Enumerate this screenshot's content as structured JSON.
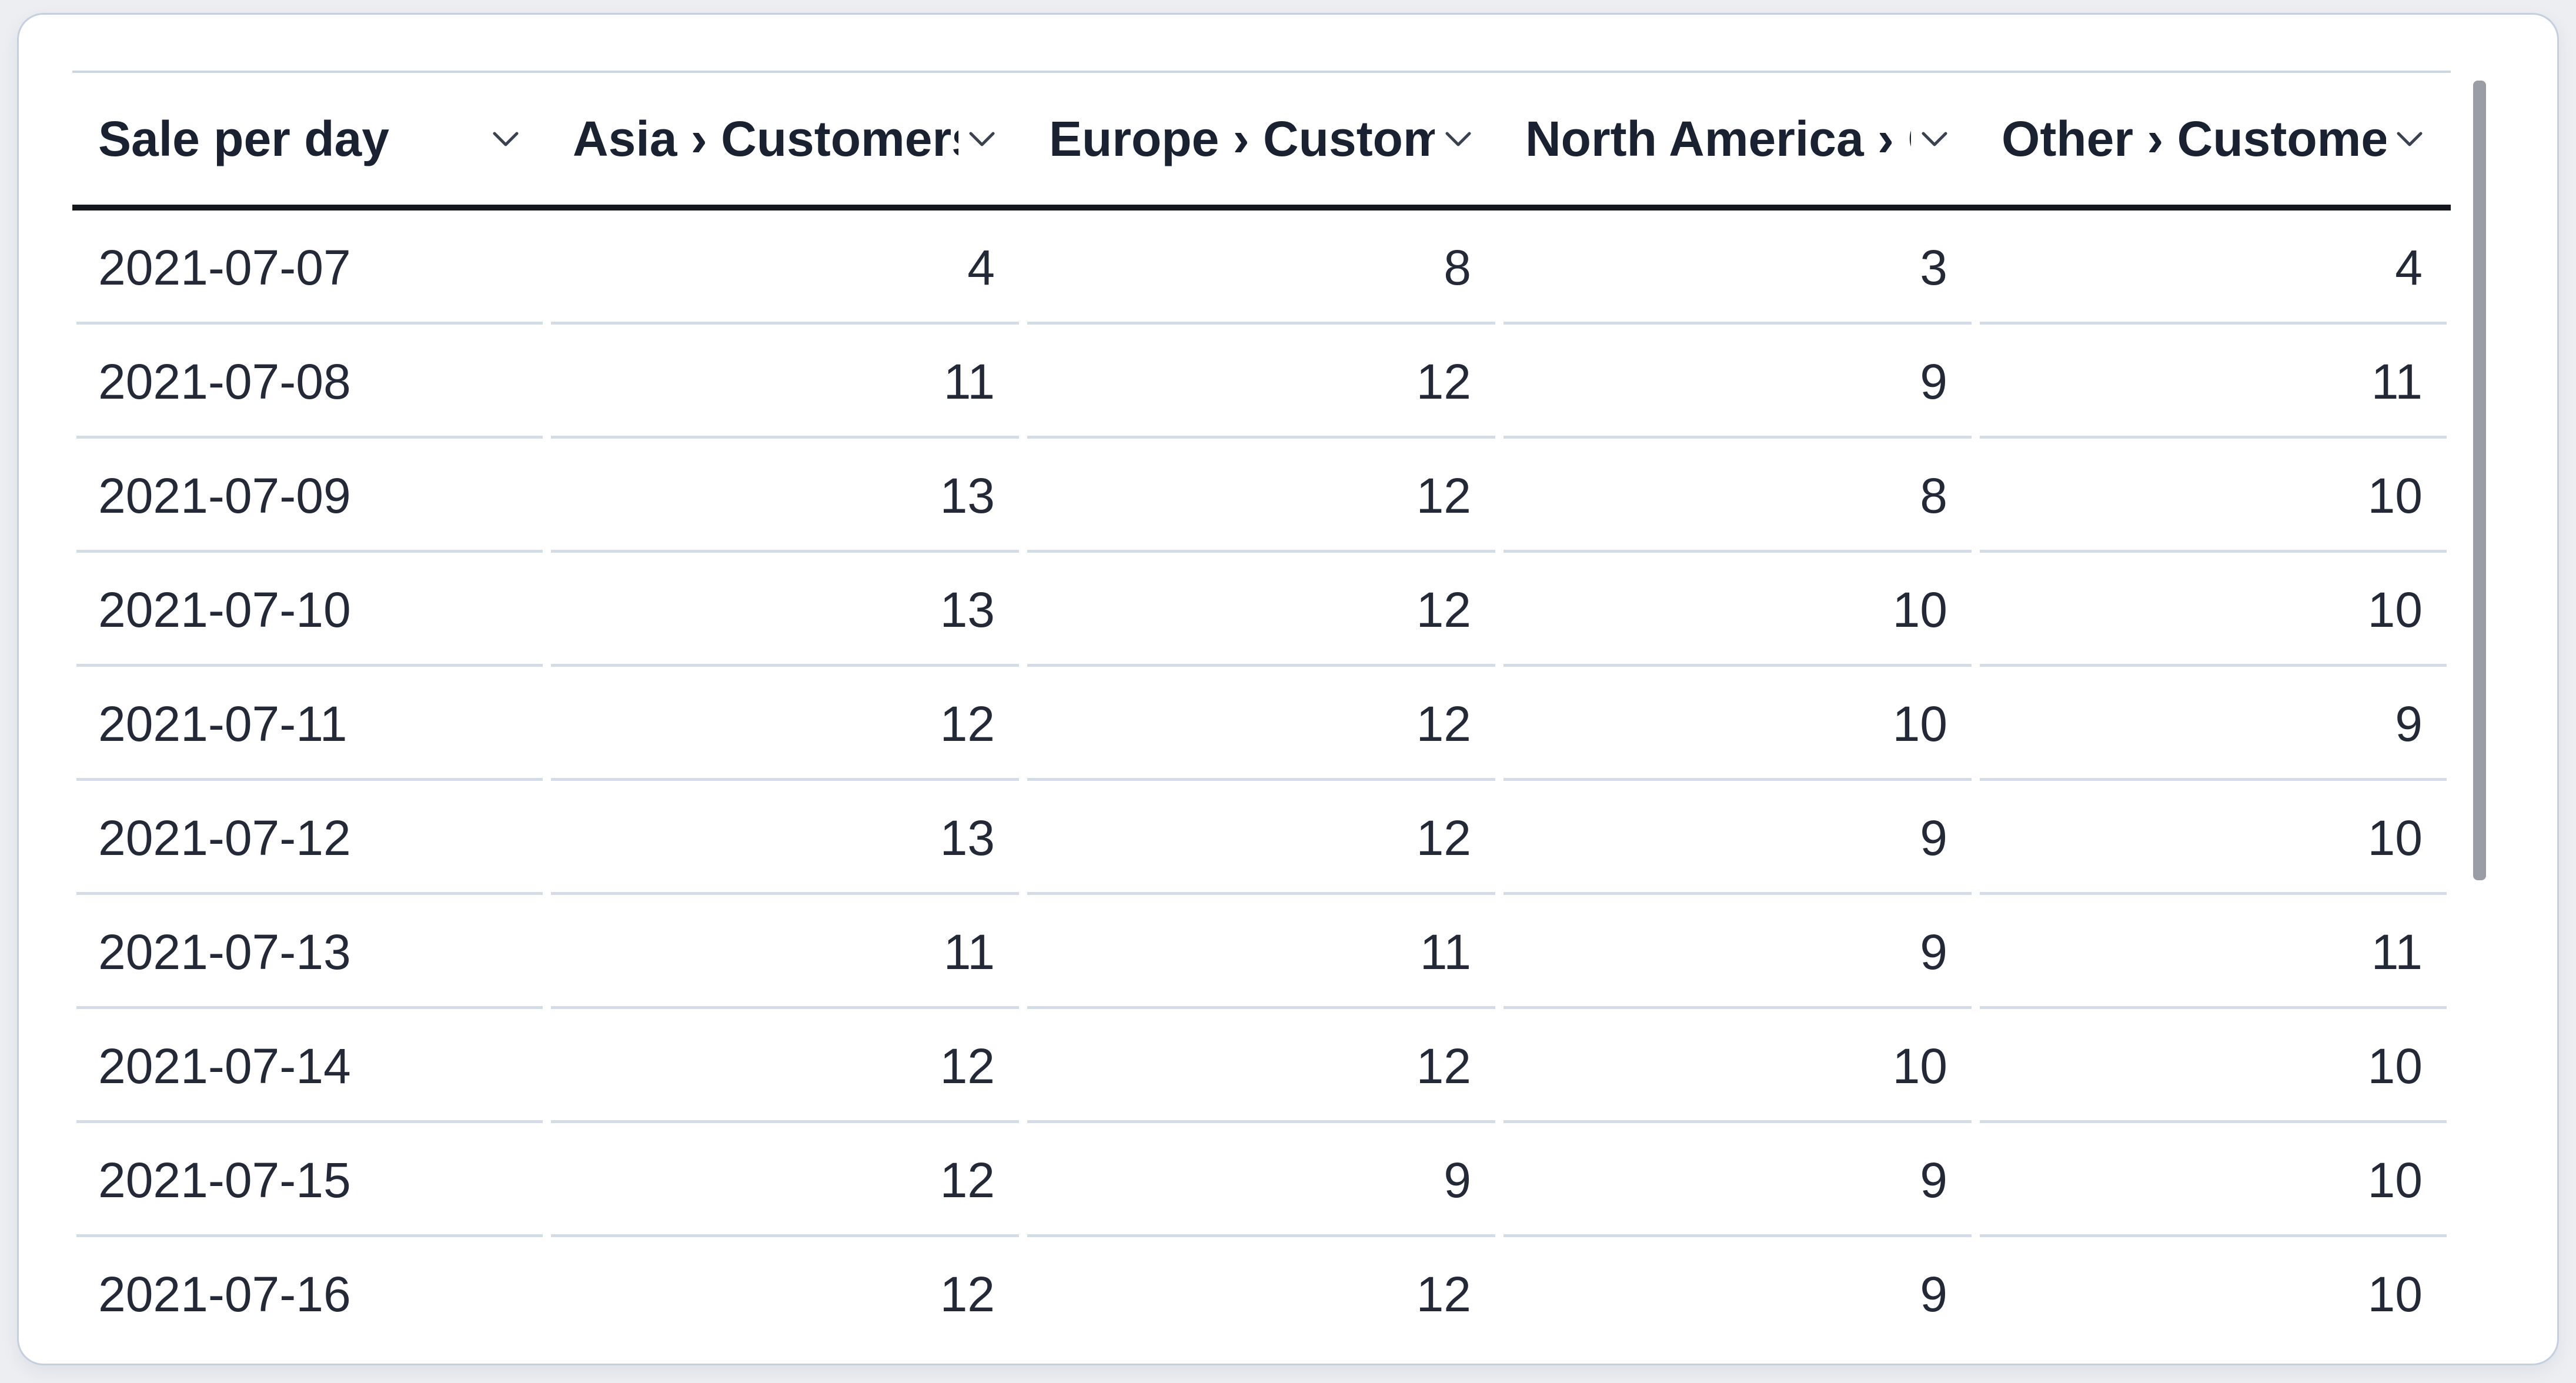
{
  "table": {
    "title": "Sale per day",
    "columns": [
      {
        "label": "Sale per day",
        "align": "left"
      },
      {
        "label": "Asia › Customers",
        "align": "right"
      },
      {
        "label": "Europe › Customers",
        "align": "right"
      },
      {
        "label": "North America › Customers",
        "align": "right"
      },
      {
        "label": "Other › Customers",
        "align": "right"
      }
    ],
    "rows": [
      {
        "date": "2021-07-07",
        "values": [
          4,
          8,
          3,
          4
        ]
      },
      {
        "date": "2021-07-08",
        "values": [
          11,
          12,
          9,
          11
        ]
      },
      {
        "date": "2021-07-09",
        "values": [
          13,
          12,
          8,
          10
        ]
      },
      {
        "date": "2021-07-10",
        "values": [
          13,
          12,
          10,
          10
        ]
      },
      {
        "date": "2021-07-11",
        "values": [
          12,
          12,
          10,
          9
        ]
      },
      {
        "date": "2021-07-12",
        "values": [
          13,
          12,
          9,
          10
        ]
      },
      {
        "date": "2021-07-13",
        "values": [
          11,
          11,
          9,
          11
        ]
      },
      {
        "date": "2021-07-14",
        "values": [
          12,
          12,
          10,
          10
        ]
      },
      {
        "date": "2021-07-15",
        "values": [
          12,
          9,
          9,
          10
        ]
      },
      {
        "date": "2021-07-16",
        "values": [
          12,
          12,
          9,
          10
        ]
      }
    ]
  },
  "icons": {
    "column_menu": "chevron-down-icon"
  },
  "scrollbar": {
    "orientation": "vertical",
    "position": "top"
  },
  "colors": {
    "page_background": "#eceef2",
    "card_background": "#ffffff",
    "card_border": "#c4d0e0",
    "header_text": "#1a2130",
    "header_underline": "#14171c",
    "header_top_border": "#ccd7e4",
    "cell_text": "#232936",
    "row_separator": "#d3dde9",
    "scrollbar_thumb": "#9a9da5"
  }
}
